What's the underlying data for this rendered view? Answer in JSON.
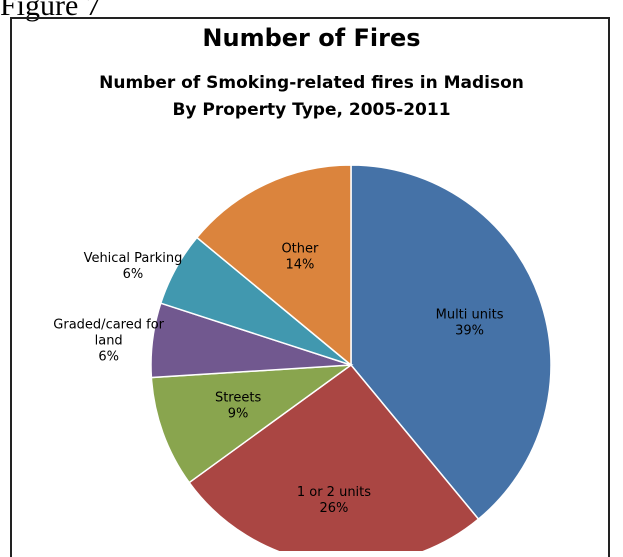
{
  "figure_caption": "Figure 7",
  "chart_data": {
    "type": "pie",
    "title": "Number of Fires",
    "subtitle_lines": [
      "Number of Smoking-related fires in Madison",
      "By Property Type, 2005-2011"
    ],
    "slices": [
      {
        "label_lines": [
          "Multi units"
        ],
        "value": 39,
        "value_label": "39%",
        "color": "#4572A7"
      },
      {
        "label_lines": [
          "1 or 2 units"
        ],
        "value": 26,
        "value_label": "26%",
        "color": "#AA4643"
      },
      {
        "label_lines": [
          "Streets"
        ],
        "value": 9,
        "value_label": "9%",
        "color": "#89A54E"
      },
      {
        "label_lines": [
          "Graded/cared for",
          "land"
        ],
        "value": 6,
        "value_label": "6%",
        "color": "#71588F"
      },
      {
        "label_lines": [
          "Vehical Parking"
        ],
        "value": 6,
        "value_label": "6%",
        "color": "#4198AF"
      },
      {
        "label_lines": [
          "Other"
        ],
        "value": 14,
        "value_label": "14%",
        "color": "#DB843D"
      }
    ]
  }
}
